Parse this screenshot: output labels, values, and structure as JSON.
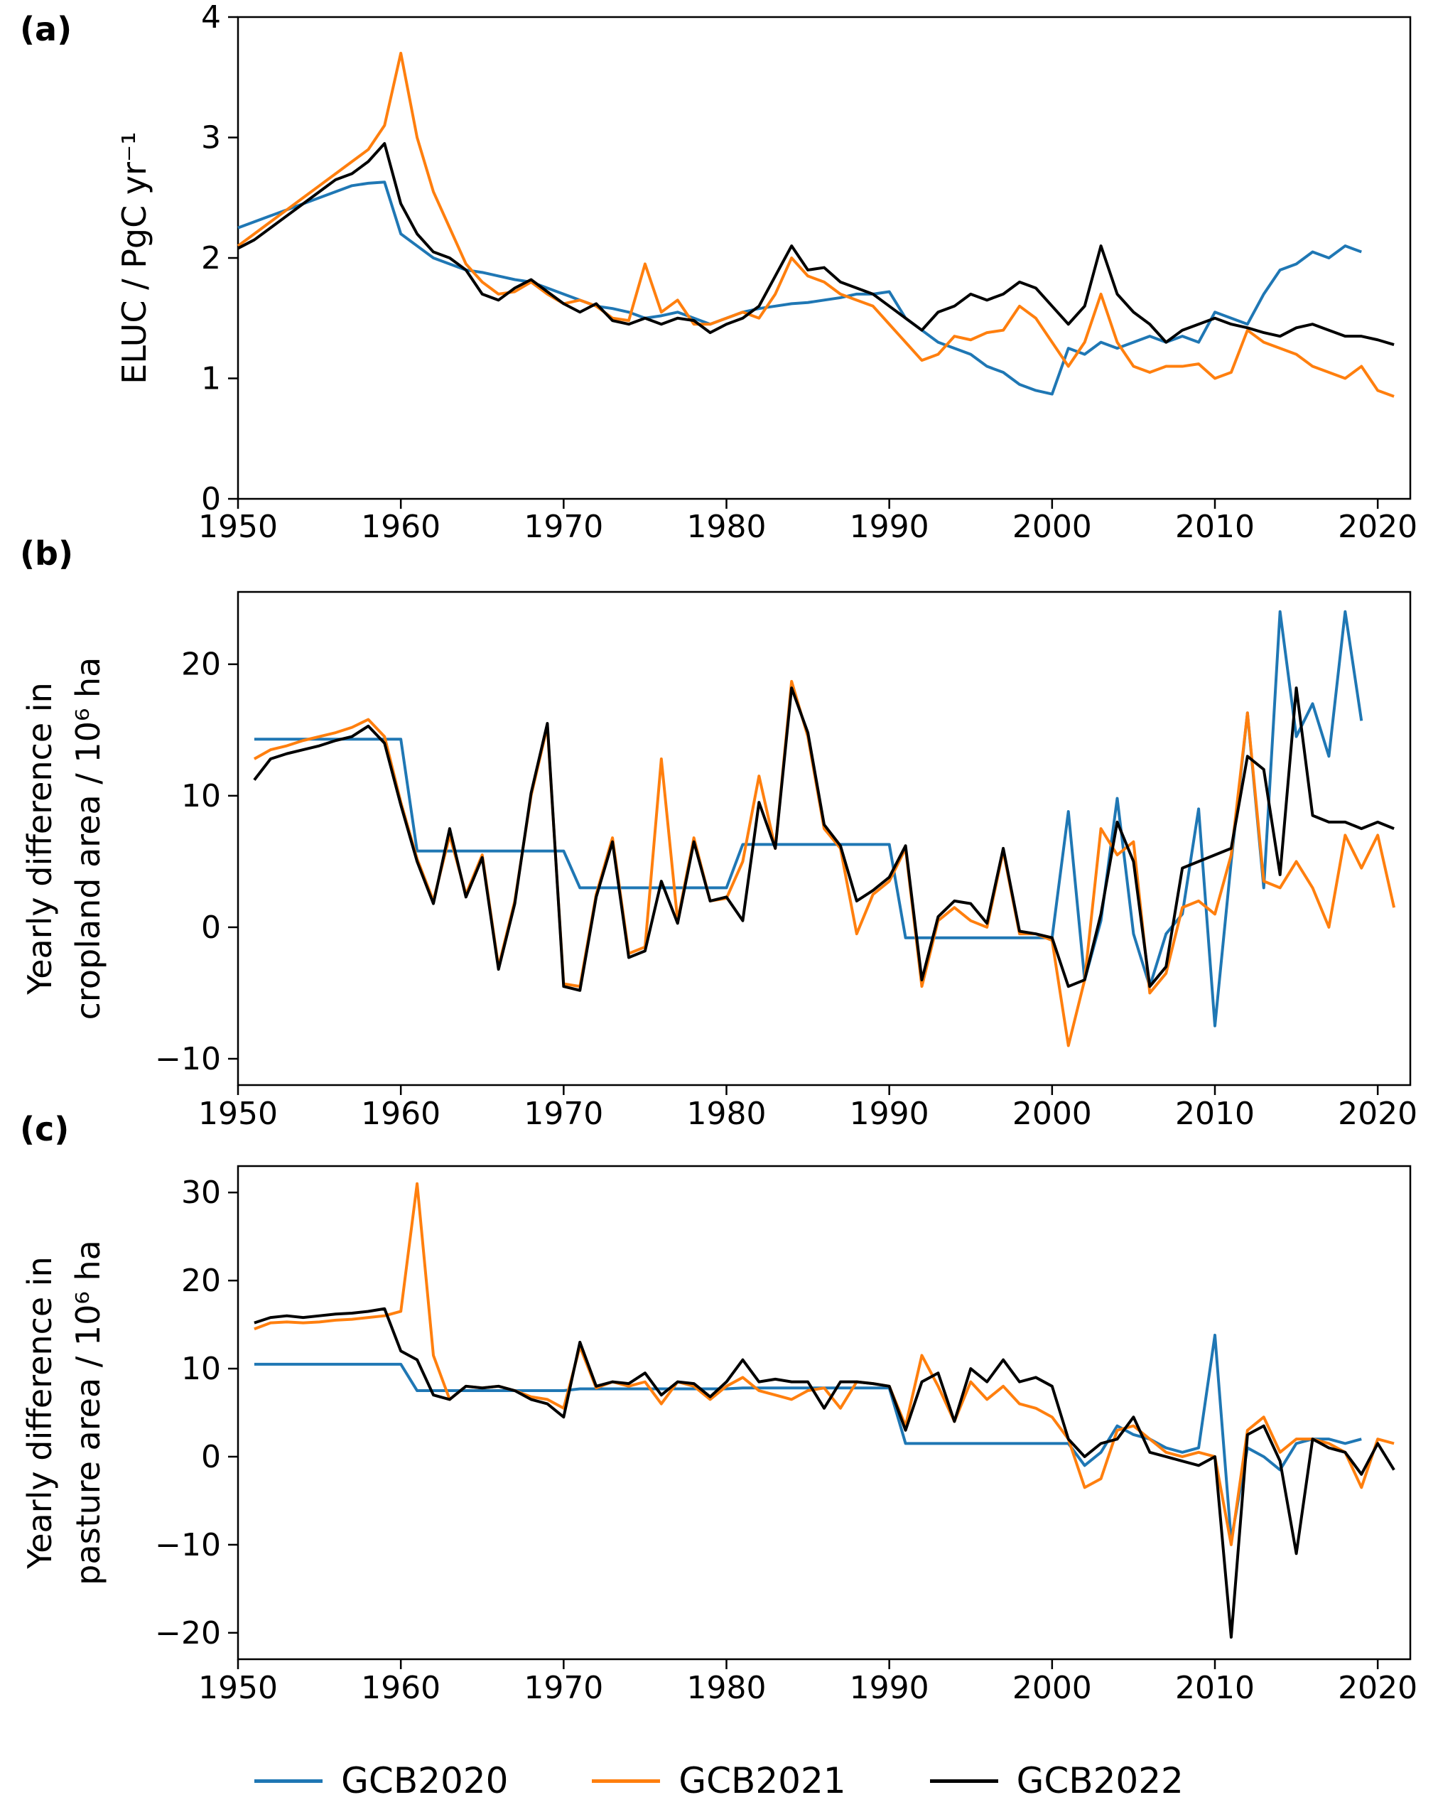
{
  "figure": {
    "background": "#ffffff",
    "panel_labels": [
      "(a)",
      "(b)",
      "(c)"
    ]
  },
  "legend": {
    "entries": [
      {
        "label": "GCB2020",
        "color": "#1f77b4"
      },
      {
        "label": "GCB2021",
        "color": "#ff7f0e"
      },
      {
        "label": "GCB2022",
        "color": "#000000"
      }
    ]
  },
  "chart_data": [
    {
      "type": "line",
      "panel_label": "(a)",
      "ylabel_lines": [
        "ELUC / PgC yr⁻¹"
      ],
      "xlim": [
        1950,
        2022
      ],
      "ylim": [
        0,
        4
      ],
      "xticks": [
        1950,
        1960,
        1970,
        1980,
        1990,
        2000,
        2010,
        2020
      ],
      "ytick_values": [
        0,
        1,
        2,
        3,
        4
      ],
      "ytick_labels": [
        "0",
        "1",
        "2",
        "3",
        "4"
      ],
      "series": [
        {
          "name": "GCB2020",
          "color": "#1f77b4",
          "x_start": 1950,
          "y": [
            2.25,
            2.3,
            2.35,
            2.4,
            2.45,
            2.5,
            2.55,
            2.6,
            2.62,
            2.63,
            2.2,
            2.1,
            2.0,
            1.95,
            1.9,
            1.88,
            1.85,
            1.82,
            1.8,
            1.75,
            1.7,
            1.65,
            1.6,
            1.58,
            1.55,
            1.5,
            1.52,
            1.55,
            1.5,
            1.45,
            1.5,
            1.55,
            1.58,
            1.6,
            1.62,
            1.63,
            1.65,
            1.67,
            1.7,
            1.7,
            1.72,
            1.5,
            1.4,
            1.3,
            1.25,
            1.2,
            1.1,
            1.05,
            0.95,
            0.9,
            0.87,
            1.25,
            1.2,
            1.3,
            1.25,
            1.3,
            1.35,
            1.3,
            1.35,
            1.3,
            1.55,
            1.5,
            1.45,
            1.7,
            1.9,
            1.95,
            2.05,
            2.0,
            2.1,
            2.05
          ]
        },
        {
          "name": "GCB2021",
          "color": "#ff7f0e",
          "x_start": 1950,
          "y": [
            2.1,
            2.2,
            2.3,
            2.4,
            2.5,
            2.6,
            2.7,
            2.8,
            2.9,
            3.1,
            3.7,
            3.0,
            2.55,
            2.25,
            1.95,
            1.8,
            1.7,
            1.72,
            1.8,
            1.7,
            1.62,
            1.65,
            1.6,
            1.5,
            1.48,
            1.95,
            1.55,
            1.65,
            1.45,
            1.45,
            1.5,
            1.55,
            1.5,
            1.7,
            2.0,
            1.85,
            1.8,
            1.7,
            1.65,
            1.6,
            1.45,
            1.3,
            1.15,
            1.2,
            1.35,
            1.32,
            1.38,
            1.4,
            1.6,
            1.5,
            1.3,
            1.1,
            1.3,
            1.7,
            1.3,
            1.1,
            1.05,
            1.1,
            1.1,
            1.12,
            1.0,
            1.05,
            1.4,
            1.3,
            1.25,
            1.2,
            1.1,
            1.05,
            1.0,
            1.1,
            0.9,
            0.85
          ]
        },
        {
          "name": "GCB2022",
          "color": "#000000",
          "x_start": 1950,
          "y": [
            2.08,
            2.15,
            2.25,
            2.35,
            2.45,
            2.55,
            2.65,
            2.7,
            2.8,
            2.95,
            2.45,
            2.2,
            2.05,
            2.0,
            1.9,
            1.7,
            1.65,
            1.75,
            1.82,
            1.72,
            1.62,
            1.55,
            1.62,
            1.48,
            1.45,
            1.5,
            1.45,
            1.5,
            1.48,
            1.38,
            1.45,
            1.5,
            1.6,
            1.85,
            2.1,
            1.9,
            1.92,
            1.8,
            1.75,
            1.7,
            1.6,
            1.5,
            1.4,
            1.55,
            1.6,
            1.7,
            1.65,
            1.7,
            1.8,
            1.75,
            1.6,
            1.45,
            1.6,
            2.1,
            1.7,
            1.55,
            1.45,
            1.3,
            1.4,
            1.45,
            1.5,
            1.45,
            1.42,
            1.38,
            1.35,
            1.42,
            1.45,
            1.4,
            1.35,
            1.35,
            1.32,
            1.28
          ]
        }
      ]
    },
    {
      "type": "line",
      "panel_label": "(b)",
      "ylabel_lines": [
        "Yearly difference in",
        "cropland area / 10⁶ ha"
      ],
      "xlim": [
        1950,
        2022
      ],
      "ylim": [
        -12,
        25.5
      ],
      "xticks": [
        1950,
        1960,
        1970,
        1980,
        1990,
        2000,
        2010,
        2020
      ],
      "ytick_values": [
        -10,
        0,
        10,
        20
      ],
      "ytick_labels": [
        "−10",
        "0",
        "10",
        "20"
      ],
      "series": [
        {
          "name": "GCB2020",
          "color": "#1f77b4",
          "x_start": 1951,
          "y": [
            14.3,
            14.3,
            14.3,
            14.3,
            14.3,
            14.3,
            14.3,
            14.3,
            14.3,
            14.3,
            5.8,
            5.8,
            5.8,
            5.8,
            5.8,
            5.8,
            5.8,
            5.8,
            5.8,
            5.8,
            3.0,
            3.0,
            3.0,
            3.0,
            3.0,
            3.0,
            3.0,
            3.0,
            3.0,
            3.0,
            6.3,
            6.3,
            6.3,
            6.3,
            6.3,
            6.3,
            6.3,
            6.3,
            6.3,
            6.3,
            -0.8,
            -0.8,
            -0.8,
            -0.8,
            -0.8,
            -0.8,
            -0.8,
            -0.8,
            -0.8,
            -0.8,
            8.8,
            -4.0,
            0.5,
            9.8,
            -0.5,
            -4.5,
            -0.5,
            1.0,
            9.0,
            -7.5,
            5.0,
            16.3,
            3.0,
            24.0,
            14.5,
            17.0,
            13.0,
            24.0,
            15.7
          ]
        },
        {
          "name": "GCB2021",
          "color": "#ff7f0e",
          "x_start": 1951,
          "y": [
            12.8,
            13.5,
            13.8,
            14.2,
            14.5,
            14.8,
            15.2,
            15.8,
            14.5,
            9.5,
            5.2,
            2.0,
            7.0,
            2.5,
            5.5,
            -3.0,
            2.0,
            10.0,
            15.3,
            -4.3,
            -4.5,
            2.5,
            6.8,
            -2.0,
            -1.5,
            12.8,
            0.5,
            6.8,
            2.0,
            2.2,
            5.0,
            11.5,
            6.0,
            18.7,
            14.5,
            7.5,
            6.0,
            -0.5,
            2.5,
            3.5,
            6.0,
            -4.5,
            0.5,
            1.5,
            0.5,
            0.0,
            5.8,
            -0.5,
            -0.5,
            -1.0,
            -9.0,
            -4.0,
            7.5,
            5.5,
            6.5,
            -5.0,
            -3.5,
            1.5,
            2.0,
            1.0,
            5.5,
            16.3,
            3.5,
            3.0,
            5.0,
            3.0,
            0.0,
            7.0,
            4.5,
            7.0,
            1.5
          ]
        },
        {
          "name": "GCB2022",
          "color": "#000000",
          "x_start": 1951,
          "y": [
            11.2,
            12.8,
            13.2,
            13.5,
            13.8,
            14.2,
            14.5,
            15.3,
            14.0,
            9.3,
            5.0,
            1.8,
            7.5,
            2.3,
            5.3,
            -3.2,
            1.8,
            10.2,
            15.5,
            -4.5,
            -4.8,
            2.3,
            6.5,
            -2.3,
            -1.8,
            3.5,
            0.3,
            6.5,
            2.0,
            2.3,
            0.5,
            9.5,
            6.0,
            18.2,
            14.8,
            7.8,
            6.2,
            2.0,
            2.8,
            3.8,
            6.2,
            -4.0,
            0.8,
            2.0,
            1.8,
            0.3,
            6.0,
            -0.3,
            -0.5,
            -0.8,
            -4.5,
            -4.0,
            1.0,
            8.0,
            5.0,
            -4.5,
            -3.0,
            4.5,
            5.0,
            5.5,
            6.0,
            13.0,
            12.0,
            4.0,
            18.2,
            8.5,
            8.0,
            8.0,
            7.5,
            8.0,
            7.5
          ]
        }
      ]
    },
    {
      "type": "line",
      "panel_label": "(c)",
      "ylabel_lines": [
        "Yearly difference in",
        "pasture area / 10⁶ ha"
      ],
      "xlim": [
        1950,
        2022
      ],
      "ylim": [
        -23,
        33
      ],
      "xticks": [
        1950,
        1960,
        1970,
        1980,
        1990,
        2000,
        2010,
        2020
      ],
      "ytick_values": [
        -20,
        -10,
        0,
        10,
        20,
        30
      ],
      "ytick_labels": [
        "−20",
        "−10",
        "0",
        "10",
        "20",
        "30"
      ],
      "series": [
        {
          "name": "GCB2020",
          "color": "#1f77b4",
          "x_start": 1951,
          "y": [
            10.5,
            10.5,
            10.5,
            10.5,
            10.5,
            10.5,
            10.5,
            10.5,
            10.5,
            10.5,
            7.5,
            7.5,
            7.5,
            7.5,
            7.5,
            7.5,
            7.5,
            7.5,
            7.5,
            7.5,
            7.7,
            7.7,
            7.7,
            7.7,
            7.7,
            7.7,
            7.7,
            7.7,
            7.7,
            7.7,
            7.8,
            7.8,
            7.8,
            7.8,
            7.8,
            7.8,
            7.8,
            7.8,
            7.8,
            7.8,
            1.5,
            1.5,
            1.5,
            1.5,
            1.5,
            1.5,
            1.5,
            1.5,
            1.5,
            1.5,
            1.5,
            -1.0,
            0.5,
            3.5,
            2.5,
            2.0,
            1.0,
            0.5,
            1.0,
            13.8,
            -9.5,
            1.0,
            0.0,
            -1.5,
            1.5,
            2.0,
            2.0,
            1.5,
            2.0
          ]
        },
        {
          "name": "GCB2021",
          "color": "#ff7f0e",
          "x_start": 1951,
          "y": [
            14.5,
            15.2,
            15.3,
            15.2,
            15.3,
            15.5,
            15.6,
            15.8,
            16.0,
            16.5,
            31.0,
            11.5,
            6.5,
            8.0,
            7.8,
            8.0,
            7.5,
            6.8,
            6.5,
            5.5,
            12.5,
            7.8,
            8.5,
            8.0,
            8.5,
            6.0,
            8.5,
            8.0,
            6.5,
            8.0,
            9.0,
            7.5,
            7.0,
            6.5,
            7.5,
            7.8,
            5.5,
            8.5,
            8.3,
            8.0,
            3.5,
            11.5,
            8.0,
            4.0,
            8.5,
            6.5,
            8.0,
            6.0,
            5.5,
            4.5,
            2.0,
            -3.5,
            -2.5,
            3.0,
            3.5,
            2.0,
            0.5,
            0.0,
            0.5,
            0.0,
            -10.0,
            3.0,
            4.5,
            0.5,
            2.0,
            2.0,
            1.5,
            0.5,
            -3.5,
            2.0,
            1.5
          ]
        },
        {
          "name": "GCB2022",
          "color": "#000000",
          "x_start": 1951,
          "y": [
            15.2,
            15.8,
            16.0,
            15.8,
            16.0,
            16.2,
            16.3,
            16.5,
            16.8,
            12.0,
            11.0,
            7.0,
            6.5,
            8.0,
            7.8,
            8.0,
            7.5,
            6.5,
            6.0,
            4.5,
            13.0,
            8.0,
            8.5,
            8.3,
            9.5,
            7.0,
            8.5,
            8.3,
            6.8,
            8.5,
            11.0,
            8.5,
            8.8,
            8.5,
            8.5,
            5.5,
            8.5,
            8.5,
            8.3,
            8.0,
            3.0,
            8.5,
            9.5,
            4.0,
            10.0,
            8.5,
            11.0,
            8.5,
            9.0,
            8.0,
            2.0,
            0.0,
            1.5,
            2.0,
            4.5,
            0.5,
            0.0,
            -0.5,
            -1.0,
            0.0,
            -20.5,
            2.5,
            3.5,
            -0.5,
            -11.0,
            2.0,
            1.0,
            0.5,
            -2.0,
            1.5,
            -1.5
          ]
        }
      ]
    }
  ]
}
